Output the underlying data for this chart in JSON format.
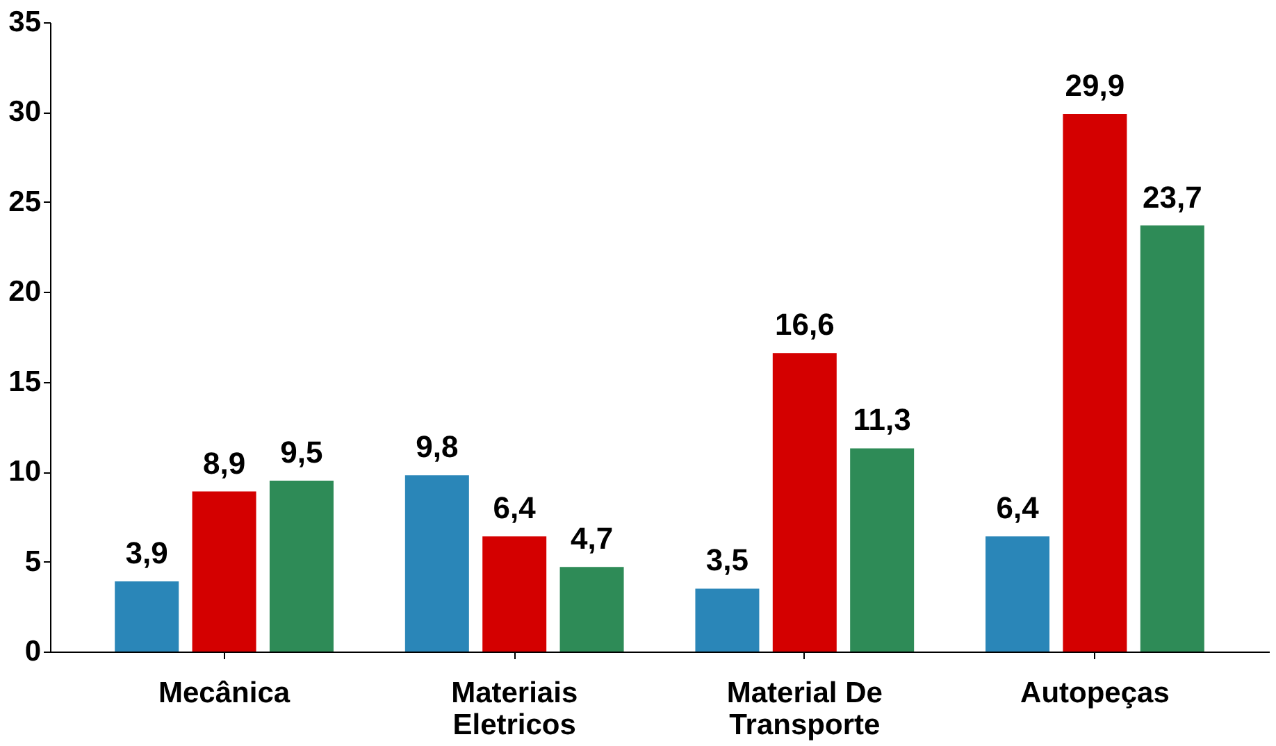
{
  "chart_data": {
    "type": "bar",
    "categories": [
      "Mecânica",
      "Materiais Eletricos",
      "Material De Transporte",
      "Autopeças"
    ],
    "series": [
      {
        "color": "#2a86b8",
        "values": [
          3.9,
          9.8,
          3.5,
          6.4
        ],
        "value_labels": [
          "3,9",
          "9,8",
          "3,5",
          "6,4"
        ]
      },
      {
        "color": "#d40000",
        "values": [
          8.9,
          6.4,
          16.6,
          29.9
        ],
        "value_labels": [
          "8,9",
          "6,4",
          "16,6",
          "29,9"
        ]
      },
      {
        "color": "#2e8b57",
        "values": [
          9.5,
          4.7,
          11.3,
          23.7
        ],
        "value_labels": [
          "9,5",
          "4,7",
          "11,3",
          "23,7"
        ]
      }
    ],
    "ylim": [
      0,
      35
    ],
    "yticks": [
      0,
      5,
      10,
      15,
      20,
      25,
      30,
      35
    ],
    "grid": false,
    "legend": false
  }
}
